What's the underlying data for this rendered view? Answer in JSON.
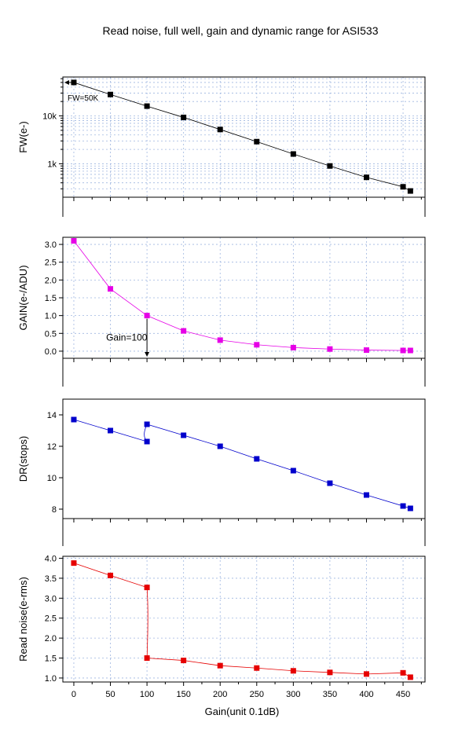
{
  "title": "Read noise, full well, gain and dynamic range for ASI533",
  "xlabel": "Gain(unit 0.1dB)",
  "x_tick_labels": [
    "0",
    "50",
    "100",
    "150",
    "200",
    "250",
    "300",
    "350",
    "400",
    "450"
  ],
  "chart_data": [
    {
      "type": "scatter",
      "id": "fw",
      "ylabel": "FW(e-)",
      "yscale": "log",
      "xlim": [
        -15,
        480
      ],
      "ylim": [
        200,
        65000
      ],
      "y_tick_values": [
        1000,
        10000
      ],
      "y_tick_labels": [
        "1k",
        "10k"
      ],
      "grid": true,
      "color": "#000000",
      "x": [
        0,
        50,
        100,
        150,
        200,
        250,
        300,
        350,
        400,
        450,
        460
      ],
      "y": [
        50000,
        28000,
        16000,
        9300,
        5200,
        2900,
        1600,
        900,
        520,
        330,
        270
      ],
      "annotation": "FW=50K"
    },
    {
      "type": "scatter",
      "id": "gain",
      "ylabel": "GAIN(e-/ADU)",
      "xlim": [
        -15,
        480
      ],
      "ylim": [
        -0.2,
        3.2
      ],
      "y_tick_labels": [
        "0.0",
        "0.5",
        "1.0",
        "1.5",
        "2.0",
        "2.5",
        "3.0"
      ],
      "grid": true,
      "color": "#e600e6",
      "x": [
        0,
        50,
        100,
        150,
        200,
        250,
        300,
        350,
        400,
        450,
        460
      ],
      "y": [
        3.1,
        1.75,
        1.0,
        0.57,
        0.31,
        0.18,
        0.1,
        0.06,
        0.03,
        0.02,
        0.02
      ],
      "annotation": "Gain=100"
    },
    {
      "type": "scatter",
      "id": "dr",
      "ylabel": "DR(stops)",
      "xlim": [
        -15,
        480
      ],
      "ylim": [
        7.4,
        15.0
      ],
      "y_tick_labels": [
        "8",
        "10",
        "12",
        "14"
      ],
      "grid": false,
      "color": "#0000cc",
      "x": [
        0,
        50,
        100,
        100,
        150,
        200,
        250,
        300,
        350,
        400,
        450,
        460
      ],
      "y": [
        13.7,
        13.0,
        12.3,
        13.4,
        12.7,
        12.0,
        11.2,
        10.45,
        9.65,
        8.9,
        8.2,
        8.05
      ]
    },
    {
      "type": "scatter",
      "id": "rn",
      "ylabel": "Read noise(e-rms)",
      "xlim": [
        -15,
        480
      ],
      "ylim": [
        0.9,
        4.05
      ],
      "y_tick_labels": [
        "1.0",
        "1.5",
        "2.0",
        "2.5",
        "3.0",
        "3.5",
        "4.0"
      ],
      "grid": true,
      "color": "#e60000",
      "x": [
        0,
        50,
        100,
        100,
        150,
        200,
        250,
        300,
        350,
        400,
        450,
        460
      ],
      "y": [
        3.88,
        3.57,
        3.27,
        1.5,
        1.44,
        1.31,
        1.25,
        1.18,
        1.14,
        1.1,
        1.13,
        1.02
      ]
    }
  ]
}
